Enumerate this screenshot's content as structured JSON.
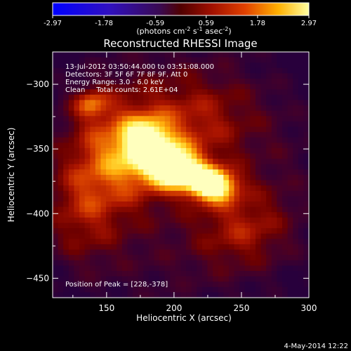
{
  "colorbar": {
    "ticks": [
      "-2.97",
      "-1.78",
      "-0.59",
      "0.59",
      "1.78",
      "2.97"
    ],
    "tick_values": [
      -2.97,
      -1.78,
      -0.59,
      0.59,
      1.78,
      2.97
    ],
    "range": [
      -2.97,
      2.97
    ],
    "label_main": "(photons cm",
    "label_exp1": "-2",
    "label_mid": " s",
    "label_exp2": "-1",
    "label_end": " asec",
    "label_exp3": "-2",
    "label_close": ")"
  },
  "footer": {
    "date": "4-May-2014 12:22"
  },
  "chart_data": {
    "type": "heatmap",
    "title": "Reconstructed RHESSI Image",
    "xlabel": "Heliocentric X (arcsec)",
    "ylabel": "Heliocentric Y (arcsec)",
    "xlim": [
      110,
      300
    ],
    "ylim": [
      -465,
      -275
    ],
    "xticks": [
      150,
      200,
      250,
      300
    ],
    "xtick_labels": [
      "150",
      "200",
      "250",
      "300"
    ],
    "yticks": [
      -300,
      -350,
      -400,
      -450
    ],
    "ytick_labels": [
      "−300",
      "−350",
      "−400",
      "−450"
    ],
    "annotations": [
      "13-Jul-2012 03:50:44.000 to 03:51:08.000",
      "Detectors: 3F 5F 6F 7F 8F 9F, Att 0",
      "Energy Range: 3.0 - 6.0 keV",
      "Clean     Total counts: 2.61E+04"
    ],
    "peak_label": "Position of Peak = [228,-378]",
    "peak": [
      228,
      -378
    ],
    "sources": [
      {
        "x": 228,
        "y": -378,
        "amp": 1.0,
        "sx": 13,
        "sy": 9
      },
      {
        "x": 200,
        "y": -365,
        "amp": 0.95,
        "sx": 15,
        "sy": 11
      },
      {
        "x": 180,
        "y": -345,
        "amp": 0.7,
        "sx": 12,
        "sy": 12
      },
      {
        "x": 138,
        "y": -315,
        "amp": 0.45,
        "sx": 9,
        "sy": 8
      },
      {
        "x": 160,
        "y": -355,
        "amp": 0.55,
        "sx": 25,
        "sy": 30
      },
      {
        "x": 215,
        "y": -330,
        "amp": 0.35,
        "sx": 30,
        "sy": 25
      },
      {
        "x": 250,
        "y": -410,
        "amp": 0.35,
        "sx": 25,
        "sy": 22
      },
      {
        "x": 130,
        "y": -400,
        "amp": 0.3,
        "sx": 20,
        "sy": 30
      }
    ]
  }
}
